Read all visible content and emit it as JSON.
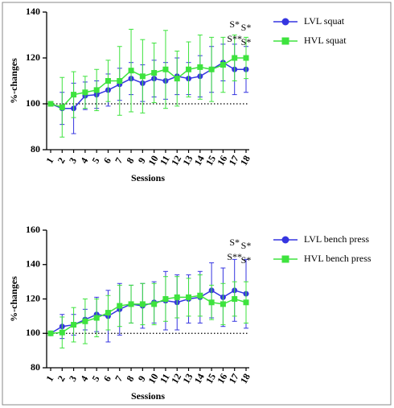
{
  "chart_data": [
    {
      "type": "line",
      "ylabel": "%-changes",
      "xlabel": "Sessions",
      "categories": [
        "1",
        "2",
        "3",
        "4",
        "5",
        "6",
        "7",
        "8",
        "9",
        "10",
        "11",
        "12",
        "13",
        "14",
        "15",
        "16",
        "17",
        "18"
      ],
      "ylim": [
        80,
        140
      ],
      "yticks": [
        80,
        100,
        120,
        140
      ],
      "hline": 100,
      "series": [
        {
          "name": "LVL squat",
          "color": "#3535e0",
          "marker": "circle",
          "values": [
            100,
            98,
            98,
            103.5,
            104,
            106,
            108.5,
            111,
            109,
            111,
            110,
            112,
            111,
            112,
            115,
            118,
            115,
            115
          ],
          "errors": [
            0,
            7,
            11,
            6,
            6,
            7,
            7,
            7,
            8,
            8,
            8,
            8,
            7,
            9,
            10,
            8,
            11,
            10
          ]
        },
        {
          "name": "HVL squat",
          "color": "#3ee33e",
          "marker": "square",
          "values": [
            100,
            98.5,
            104,
            105,
            106,
            110,
            110,
            114.5,
            112,
            113.5,
            115,
            111,
            115,
            116,
            115,
            117,
            120,
            120
          ],
          "errors": [
            0,
            13,
            10,
            7,
            9,
            9,
            15,
            18,
            16,
            13,
            17,
            12,
            12,
            14,
            14,
            12,
            10,
            9
          ]
        }
      ],
      "annotations": [
        {
          "text": "S*",
          "x": "17"
        },
        {
          "text": "S*",
          "x": "18"
        },
        {
          "text": "S**",
          "x": "17"
        },
        {
          "text": "S*",
          "x": "18"
        }
      ]
    },
    {
      "type": "line",
      "ylabel": "%-changes",
      "xlabel": "Sessions",
      "categories": [
        "1",
        "2",
        "3",
        "4",
        "5",
        "6",
        "7",
        "8",
        "9",
        "10",
        "11",
        "12",
        "13",
        "14",
        "15",
        "16",
        "17",
        "18"
      ],
      "ylim": [
        80,
        160
      ],
      "yticks": [
        80,
        100,
        120,
        140,
        160
      ],
      "hline": 100,
      "series": [
        {
          "name": "LVL bench press",
          "color": "#3535e0",
          "marker": "circle",
          "values": [
            100,
            104,
            105,
            108,
            111,
            110,
            114,
            117,
            116,
            118,
            119,
            118,
            120,
            121,
            125,
            121,
            125,
            123
          ],
          "errors": [
            0,
            7,
            6,
            6,
            10,
            15,
            15,
            11,
            13,
            12,
            17,
            16,
            14,
            15,
            16,
            17,
            18,
            20
          ]
        },
        {
          "name": "HVL bench press",
          "color": "#3ee33e",
          "marker": "square",
          "values": [
            100,
            100.5,
            105,
            107,
            109,
            112,
            116,
            117,
            117,
            117,
            120,
            121,
            121,
            122,
            118,
            117,
            120,
            118
          ],
          "errors": [
            0,
            9,
            10,
            13,
            11,
            10,
            12,
            11,
            12,
            12,
            13,
            12,
            11,
            12,
            10,
            12,
            10,
            12
          ]
        }
      ],
      "annotations": [
        {
          "text": "S*",
          "x": "17"
        },
        {
          "text": "S*",
          "x": "18"
        },
        {
          "text": "S**",
          "x": "17"
        },
        {
          "text": "S*",
          "x": "18"
        }
      ]
    }
  ]
}
